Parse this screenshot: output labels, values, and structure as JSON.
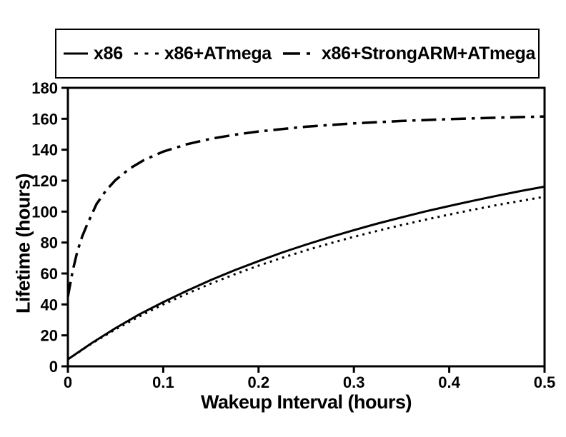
{
  "figure": {
    "background": "#ffffff",
    "foreground": "#000000"
  },
  "chart_data": {
    "type": "line",
    "title": "",
    "xlabel": "Wakeup Interval (hours)",
    "ylabel": "Lifetime (hours)",
    "xlim": [
      0,
      0.5
    ],
    "ylim": [
      0,
      180
    ],
    "xtick_values": [
      0,
      0.1,
      0.2,
      0.3,
      0.4,
      0.5
    ],
    "xtick_labels": [
      "0",
      "0.1",
      "0.2",
      "0.3",
      "0.4",
      "0.5"
    ],
    "ytick_values": [
      0,
      20,
      40,
      60,
      80,
      100,
      120,
      140,
      160,
      180
    ],
    "ytick_labels": [
      "0",
      "20",
      "40",
      "60",
      "80",
      "100",
      "120",
      "140",
      "160",
      "180"
    ],
    "grid": false,
    "legend_position": "top",
    "line_color": "#000000",
    "series": [
      {
        "name": "x86",
        "line_style": "solid",
        "x": [
          0,
          0.025,
          0.05,
          0.075,
          0.1,
          0.125,
          0.15,
          0.175,
          0.2,
          0.225,
          0.25,
          0.275,
          0.3,
          0.325,
          0.35,
          0.375,
          0.4,
          0.425,
          0.45,
          0.475,
          0.5
        ],
        "y": [
          4.5,
          15.0,
          24.7,
          33.6,
          41.5,
          48.9,
          55.8,
          62.1,
          68.0,
          73.6,
          78.7,
          83.5,
          88.0,
          92.3,
          96.3,
          100.1,
          103.6,
          107.0,
          110.2,
          113.3,
          116.1
        ]
      },
      {
        "name": "x86+ATmega",
        "line_style": "dotted",
        "x": [
          0,
          0.025,
          0.05,
          0.075,
          0.1,
          0.125,
          0.15,
          0.175,
          0.2,
          0.225,
          0.25,
          0.275,
          0.3,
          0.325,
          0.35,
          0.375,
          0.4,
          0.425,
          0.45,
          0.475,
          0.5
        ],
        "y": [
          4.5,
          14.7,
          23.9,
          32.3,
          40.0,
          47.0,
          53.5,
          59.5,
          65.1,
          70.2,
          75.0,
          79.5,
          83.7,
          87.6,
          91.3,
          94.8,
          98.1,
          101.2,
          104.2,
          106.9,
          109.6
        ]
      },
      {
        "name": "x86+StrongARM+ATmega",
        "line_style": "dashdot",
        "x": [
          0,
          0.005,
          0.01,
          0.015,
          0.02,
          0.03,
          0.04,
          0.05,
          0.065,
          0.08,
          0.1,
          0.125,
          0.15,
          0.175,
          0.2,
          0.25,
          0.3,
          0.35,
          0.4,
          0.45,
          0.5
        ],
        "y": [
          45.0,
          61.7,
          74.4,
          83.9,
          91.4,
          104.8,
          113.7,
          120.4,
          127.9,
          133.4,
          138.8,
          143.6,
          147.1,
          149.7,
          151.8,
          154.9,
          157.0,
          158.6,
          159.8,
          160.7,
          161.5
        ]
      }
    ]
  }
}
